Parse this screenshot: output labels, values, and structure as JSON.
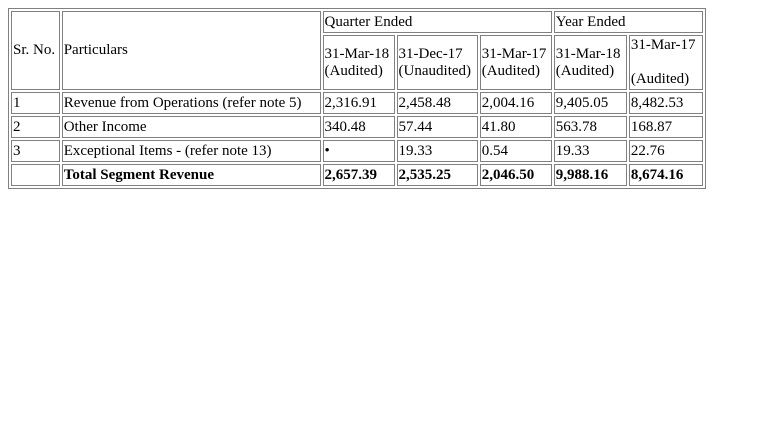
{
  "table": {
    "sr_header": "Sr. No.",
    "particulars_header": "Particulars",
    "group_quarter": "Quarter Ended",
    "group_year": "Year Ended",
    "columns": [
      {
        "date": "31-Mar-18",
        "status": "(Audited)"
      },
      {
        "date": "31-Dec-17",
        "status": "(Unaudited)"
      },
      {
        "date": "31-Mar-17",
        "status": "(Audited)"
      },
      {
        "date": "31-Mar-18",
        "status": "(Audited)"
      },
      {
        "date": "31-Mar-17",
        "status": "(Audited)"
      }
    ],
    "rows": [
      {
        "sr": "1",
        "particular": "Revenue from Operations (refer note 5)",
        "values": [
          "2,316.91",
          "2,458.48",
          "2,004.16",
          "9,405.05",
          "8,482.53"
        ]
      },
      {
        "sr": "2",
        "particular": "Other Income",
        "values": [
          "340.48",
          "57.44",
          "41.80",
          "563.78",
          "168.87"
        ]
      },
      {
        "sr": "3",
        "particular": "Exceptional Items - (refer note 13)",
        "values": [
          "•",
          "19.33",
          "0.54",
          "19.33",
          "22.76"
        ]
      }
    ],
    "total": {
      "sr": "",
      "particular": "Total Segment Revenue",
      "values": [
        "2,657.39",
        "2,535.25",
        "2,046.50",
        "9,988.16",
        "8,674.16"
      ]
    }
  }
}
